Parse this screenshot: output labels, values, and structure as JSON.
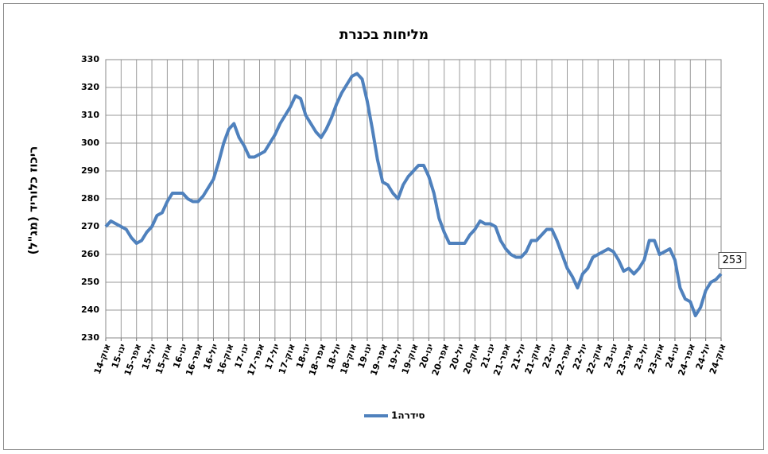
{
  "chart_data": {
    "type": "line",
    "title": "מליחות בכנרת",
    "y_label": "ריכוז כלוריד (מג\"ל)",
    "categories": [
      "אוק-14",
      null,
      null,
      "ינו-15",
      null,
      null,
      "אפר-15",
      null,
      null,
      "יול-15",
      null,
      null,
      "אוק-15",
      null,
      null,
      "ינו-16",
      null,
      null,
      "אפר-16",
      null,
      null,
      "יול-16",
      null,
      null,
      "אוק-16",
      null,
      null,
      "ינו-17",
      null,
      null,
      "אפר-17",
      null,
      null,
      "יול-17",
      null,
      null,
      "אוק-17",
      null,
      null,
      "ינו-18",
      null,
      null,
      "אפר-18",
      null,
      null,
      "יול-18",
      null,
      null,
      "אוק-18",
      null,
      null,
      "ינו-19",
      null,
      null,
      "אפר-19",
      null,
      null,
      "יול-19",
      null,
      null,
      "אוק-19",
      null,
      null,
      "ינו-20",
      null,
      null,
      "אפר-20",
      null,
      null,
      "יול-20",
      null,
      null,
      "אוק-20",
      null,
      null,
      "ינו-21",
      null,
      null,
      "אפר-21",
      null,
      null,
      "יול-21",
      null,
      null,
      "אוק-21",
      null,
      null,
      "ינו-22",
      null,
      null,
      "אפר-22",
      null,
      null,
      "יול-22",
      null,
      null,
      "אוק-22",
      null,
      null,
      "ינו-23",
      null,
      null,
      "אפר-23",
      null,
      null,
      "יול-23",
      null,
      null,
      "אוק-23",
      null,
      null,
      "ינו-24",
      null,
      null,
      "אפר-24",
      null,
      null,
      "יול-24",
      null,
      null,
      "אוק-24"
    ],
    "series": [
      {
        "name": "סידרה1",
        "color": "#4f81bd",
        "values": [
          270,
          272,
          271,
          270,
          269,
          266,
          264,
          265,
          268,
          270,
          274,
          275,
          279,
          282,
          282,
          282,
          280,
          279,
          279,
          281,
          284,
          287,
          293,
          300,
          305,
          307,
          302,
          299,
          295,
          295,
          296,
          297,
          300,
          303,
          307,
          310,
          313,
          317,
          316,
          310,
          307,
          304,
          302,
          305,
          309,
          314,
          318,
          321,
          324,
          325,
          323,
          315,
          305,
          294,
          286,
          285,
          282,
          280,
          285,
          288,
          290,
          292,
          292,
          288,
          282,
          273,
          268,
          264,
          264,
          264,
          264,
          267,
          269,
          272,
          271,
          271,
          270,
          265,
          262,
          260,
          259,
          259,
          261,
          265,
          265,
          267,
          269,
          269,
          265,
          260,
          255,
          252,
          248,
          253,
          255,
          259,
          260,
          261,
          262,
          261,
          258,
          254,
          255,
          253,
          255,
          258,
          265,
          265,
          260,
          261,
          262,
          258,
          248,
          244,
          243,
          238,
          241,
          247,
          250,
          251,
          253
        ]
      }
    ],
    "ylim": [
      230,
      330
    ],
    "yticks": [
      230,
      240,
      250,
      260,
      270,
      280,
      290,
      300,
      310,
      320,
      330
    ],
    "grid": true,
    "last_value_label": true,
    "legend": "bottom"
  }
}
